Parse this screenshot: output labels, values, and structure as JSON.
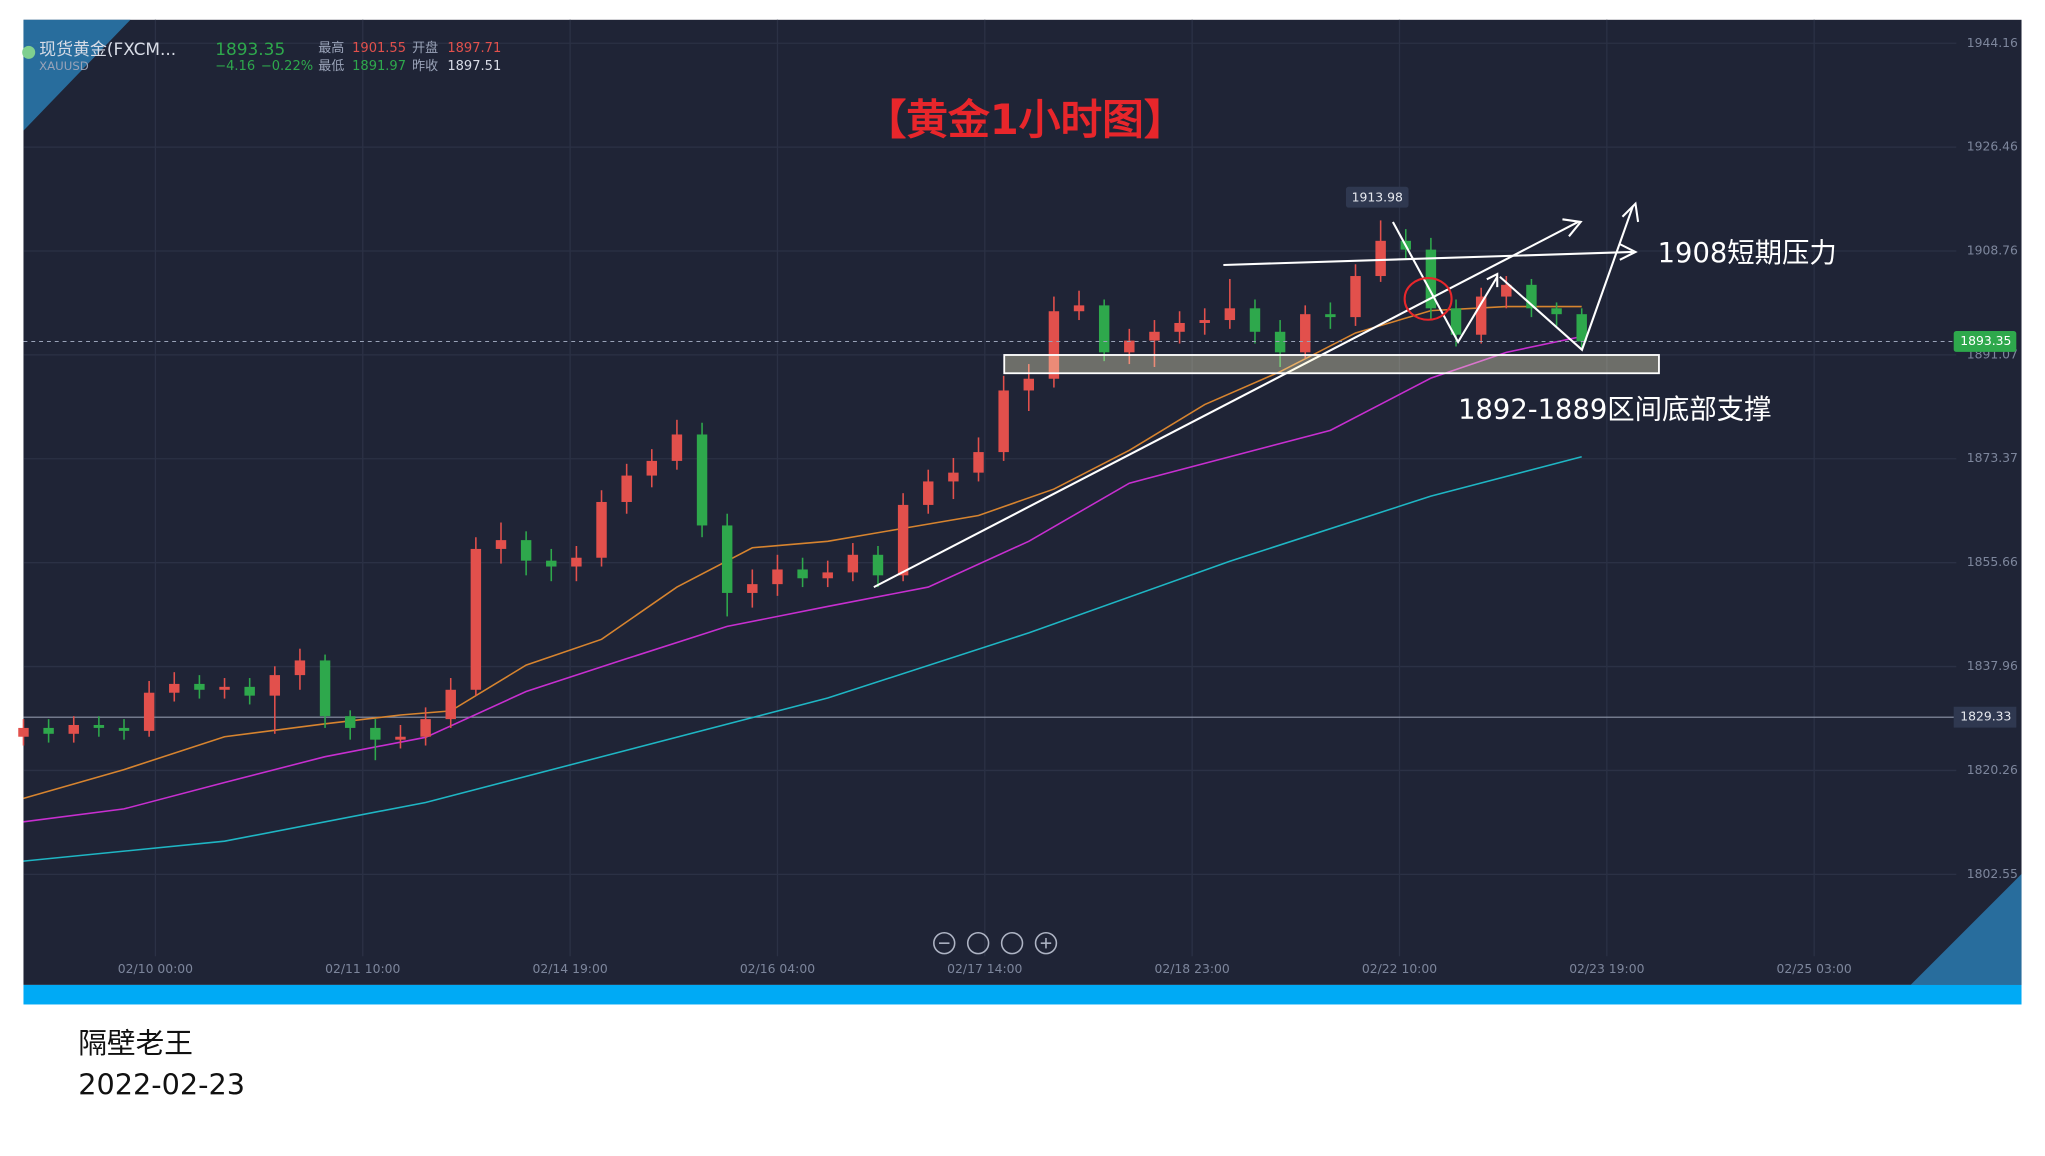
{
  "header": {
    "symbol": "现货黄金(FXCM...",
    "code": "XAUUSD",
    "last": "1893.35",
    "change": "−4.16",
    "change_pct": "−0.22%",
    "high_label": "最高",
    "high": "1901.55",
    "open_label": "开盘",
    "open": "1897.71",
    "low_label": "最低",
    "low": "1891.97",
    "prev_label": "昨收",
    "prev": "1897.51"
  },
  "chart_data": {
    "type": "candlestick",
    "title": "【黄金1小时图】",
    "annotations": {
      "high_mark": "1913.98",
      "resistance": "1908短期压力",
      "support": "1892-1889区间底部支撑"
    },
    "up_color": "#e2504c",
    "down_color": "#2ea84c",
    "xlim": [
      0,
      318
    ],
    "xticks": [
      {
        "value": 21,
        "label": "02/10 00:00"
      },
      {
        "value": 54,
        "label": "02/11 10:00"
      },
      {
        "value": 87,
        "label": "02/14 19:00"
      },
      {
        "value": 120,
        "label": "02/16 04:00"
      },
      {
        "value": 153,
        "label": "02/17 14:00"
      },
      {
        "value": 186,
        "label": "02/18 23:00"
      },
      {
        "value": 219,
        "label": "02/22 10:00"
      },
      {
        "value": 252,
        "label": "02/23 19:00"
      },
      {
        "value": 285,
        "label": "02/25 03:00"
      }
    ],
    "ylim": [
      1788.6,
      1948.16
    ],
    "yticks": [
      1802.55,
      1820.26,
      1837.96,
      1855.66,
      1873.37,
      1891.07,
      1908.76,
      1926.46,
      1944.16
    ],
    "grid": true,
    "alert_line": 1829.33,
    "x": [
      0,
      4,
      8,
      12,
      16,
      20,
      24,
      28,
      32,
      36,
      40,
      44,
      48,
      52,
      56,
      60,
      64,
      68,
      72,
      76,
      80,
      84,
      88,
      92,
      96,
      100,
      104,
      108,
      112,
      116,
      120,
      124,
      128,
      132,
      136,
      140,
      144,
      148,
      152,
      156,
      160,
      164,
      168,
      172,
      176,
      180,
      184,
      188,
      192,
      196,
      200,
      204,
      208,
      212,
      216,
      220,
      224,
      228,
      232,
      236,
      240,
      244,
      248
    ],
    "open": [
      1826.0,
      1827.5,
      1826.5,
      1828.0,
      1827.5,
      1827.0,
      1833.5,
      1835.0,
      1834.0,
      1834.5,
      1833.0,
      1836.5,
      1839.0,
      1829.5,
      1827.5,
      1825.5,
      1826.0,
      1829.0,
      1834.0,
      1858.0,
      1859.5,
      1856.0,
      1855.0,
      1856.5,
      1866.0,
      1870.5,
      1873.0,
      1877.5,
      1862.0,
      1850.5,
      1852.0,
      1854.5,
      1853.0,
      1854.0,
      1857.0,
      1853.5,
      1865.5,
      1869.5,
      1871.0,
      1874.5,
      1885.0,
      1887.0,
      1898.5,
      1899.5,
      1891.5,
      1893.5,
      1895.0,
      1896.5,
      1897.0,
      1899.0,
      1895.0,
      1891.5,
      1898.0,
      1897.5,
      1904.5,
      1910.5,
      1909.0,
      1899.0,
      1894.5,
      1901.0,
      1903.0,
      1899.0,
      1898.0
    ],
    "high": [
      1829.0,
      1829.0,
      1829.5,
      1829.5,
      1829.0,
      1835.5,
      1837.0,
      1836.5,
      1836.0,
      1836.0,
      1838.0,
      1841.0,
      1840.0,
      1830.5,
      1829.0,
      1828.0,
      1831.0,
      1836.0,
      1860.0,
      1862.5,
      1861.0,
      1858.0,
      1858.5,
      1868.0,
      1872.5,
      1875.0,
      1880.0,
      1879.5,
      1864.0,
      1854.5,
      1857.0,
      1856.5,
      1856.0,
      1859.0,
      1858.5,
      1867.5,
      1871.5,
      1873.5,
      1877.0,
      1887.5,
      1889.5,
      1901.0,
      1902.0,
      1900.5,
      1895.5,
      1897.0,
      1898.5,
      1899.0,
      1904.0,
      1900.5,
      1897.0,
      1899.5,
      1900.0,
      1906.5,
      1913.98,
      1912.5,
      1911.0,
      1900.5,
      1902.5,
      1904.5,
      1904.0,
      1900.0,
      1899.0
    ],
    "low": [
      1824.5,
      1825.0,
      1825.0,
      1826.0,
      1825.5,
      1826.0,
      1832.0,
      1832.5,
      1832.5,
      1831.5,
      1826.5,
      1834.0,
      1827.5,
      1825.5,
      1822.0,
      1824.0,
      1824.5,
      1827.5,
      1833.0,
      1855.5,
      1853.5,
      1852.5,
      1852.5,
      1855.0,
      1864.0,
      1868.5,
      1871.5,
      1860.0,
      1846.5,
      1848.0,
      1850.0,
      1851.5,
      1851.5,
      1852.5,
      1851.5,
      1852.5,
      1864.0,
      1866.5,
      1869.5,
      1873.0,
      1881.5,
      1885.5,
      1897.0,
      1890.0,
      1889.5,
      1889.0,
      1893.0,
      1894.5,
      1895.5,
      1893.0,
      1889.0,
      1890.5,
      1895.5,
      1896.0,
      1903.5,
      1907.5,
      1897.0,
      1892.5,
      1893.0,
      1899.0,
      1897.5,
      1896.0,
      1891.97
    ],
    "close": [
      1827.5,
      1826.5,
      1828.0,
      1827.5,
      1827.0,
      1833.5,
      1835.0,
      1834.0,
      1834.5,
      1833.0,
      1836.5,
      1839.0,
      1829.5,
      1827.5,
      1825.5,
      1826.0,
      1829.0,
      1834.0,
      1858.0,
      1859.5,
      1856.0,
      1855.0,
      1856.5,
      1866.0,
      1870.5,
      1873.0,
      1877.5,
      1862.0,
      1850.5,
      1852.0,
      1854.5,
      1853.0,
      1854.0,
      1857.0,
      1853.5,
      1865.5,
      1869.5,
      1871.0,
      1874.5,
      1885.0,
      1887.0,
      1898.5,
      1899.5,
      1891.5,
      1893.5,
      1895.0,
      1896.5,
      1897.0,
      1899.0,
      1895.0,
      1891.5,
      1898.0,
      1897.5,
      1904.5,
      1910.5,
      1909.0,
      1899.0,
      1894.5,
      1901.0,
      1903.0,
      1899.0,
      1898.0,
      1893.35
    ],
    "series": [
      {
        "color": "#d7842f",
        "x": [
          0,
          16,
          32,
          48,
          60,
          68,
          80,
          92,
          104,
          116,
          128,
          140,
          152,
          164,
          176,
          188,
          200,
          212,
          224,
          236,
          248
        ],
        "values": [
          1815.5,
          1820.4,
          1826.0,
          1828.2,
          1829.7,
          1830.4,
          1838.2,
          1842.6,
          1851.5,
          1858.2,
          1859.3,
          1861.5,
          1863.7,
          1868.2,
          1874.8,
          1882.6,
          1888.2,
          1894.8,
          1898.6,
          1899.3,
          1899.3
        ]
      },
      {
        "color": "#c72fd0",
        "x": [
          0,
          16,
          32,
          48,
          64,
          80,
          96,
          112,
          128,
          144,
          160,
          176,
          192,
          208,
          224,
          236,
          248
        ],
        "values": [
          1811.5,
          1813.7,
          1818.2,
          1822.6,
          1825.9,
          1833.7,
          1839.3,
          1844.8,
          1848.2,
          1851.5,
          1859.3,
          1869.2,
          1873.7,
          1878.2,
          1887.1,
          1891.5,
          1894.2
        ]
      },
      {
        "color": "#1fb6c4",
        "x": [
          0,
          32,
          64,
          96,
          128,
          160,
          192,
          224,
          248
        ],
        "values": [
          1804.8,
          1808.2,
          1814.8,
          1823.7,
          1832.6,
          1843.7,
          1855.9,
          1867.0,
          1873.7
        ]
      }
    ]
  },
  "caption": {
    "author": "隔壁老王",
    "date": "2022-02-23"
  }
}
